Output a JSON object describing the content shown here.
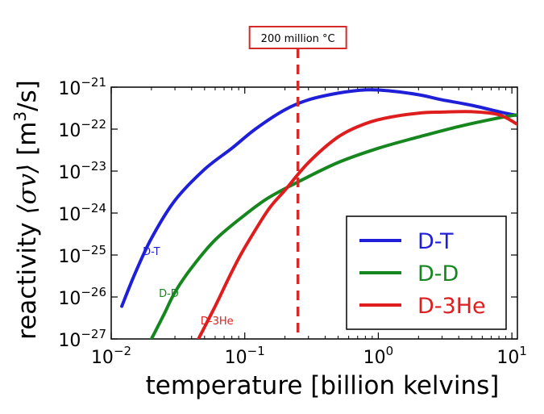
{
  "chart_data": {
    "type": "line",
    "xscale": "log",
    "yscale": "log",
    "xlim": [
      0.01,
      11
    ],
    "ylim": [
      1e-27,
      1e-21
    ],
    "xlabel": "temperature  [billion kelvins]",
    "ylabel": "reactivity",
    "ylabel_math": "⟨σv⟩",
    "ylabel_unit_pre": "[m",
    "ylabel_unit_sup": "3",
    "ylabel_unit_post": "/s]",
    "x_ticks": [
      {
        "value": 0.01,
        "base": "10",
        "exp": "−2"
      },
      {
        "value": 0.1,
        "base": "10",
        "exp": "−1"
      },
      {
        "value": 1,
        "base": "10",
        "exp": "0"
      },
      {
        "value": 10,
        "base": "10",
        "exp": "1"
      }
    ],
    "y_ticks": [
      {
        "value": 1e-21,
        "base": "10",
        "exp": "−21"
      },
      {
        "value": 1e-22,
        "base": "10",
        "exp": "−22"
      },
      {
        "value": 1e-23,
        "base": "10",
        "exp": "−23"
      },
      {
        "value": 1e-24,
        "base": "10",
        "exp": "−24"
      },
      {
        "value": 1e-25,
        "base": "10",
        "exp": "−25"
      },
      {
        "value": 1e-26,
        "base": "10",
        "exp": "−26"
      },
      {
        "value": 1e-27,
        "base": "10",
        "exp": "−27"
      }
    ],
    "annotation": {
      "text": "200 million °C",
      "x": 0.25,
      "color": "#d42a2a"
    },
    "legend": {
      "placement": "lower-right"
    },
    "series": [
      {
        "name": "D-T",
        "inline_label": "D-T",
        "label_pos": {
          "x": 0.02,
          "y": 1e-25
        },
        "color": "#1f1fd8",
        "x": [
          0.012,
          0.015,
          0.02,
          0.03,
          0.05,
          0.08,
          0.12,
          0.2,
          0.3,
          0.5,
          0.8,
          1.2,
          2,
          3,
          5,
          8,
          11
        ],
        "y": [
          6e-27,
          3.5e-26,
          2.5e-25,
          2e-24,
          1.1e-23,
          3.5e-23,
          1e-22,
          2.9e-22,
          5e-22,
          7.2e-22,
          8.6e-22,
          8.2e-22,
          6.6e-22,
          5e-22,
          3.7e-22,
          2.6e-22,
          2.1e-22
        ]
      },
      {
        "name": "D-D",
        "inline_label": "D-D",
        "label_pos": {
          "x": 0.027,
          "y": 1e-26
        },
        "color": "#16861e",
        "x": [
          0.02,
          0.025,
          0.03,
          0.04,
          0.06,
          0.1,
          0.15,
          0.25,
          0.5,
          1,
          2,
          4,
          8,
          11
        ],
        "y": [
          1e-27,
          4e-27,
          1.3e-26,
          5e-26,
          2.3e-25,
          9e-25,
          2.3e-24,
          5.5e-24,
          1.6e-23,
          3.5e-23,
          6.5e-23,
          1.15e-22,
          1.85e-22,
          2.2e-22
        ]
      },
      {
        "name": "D-3He",
        "inline_label": "D-3He",
        "label_pos": {
          "x": 0.062,
          "y": 2.2e-27
        },
        "color": "#de1e1e",
        "x": [
          0.045,
          0.06,
          0.08,
          0.1,
          0.15,
          0.2,
          0.3,
          0.5,
          0.8,
          1.2,
          2,
          3,
          5,
          8,
          11
        ],
        "y": [
          1e-27,
          6e-27,
          4e-26,
          1.5e-25,
          1.2e-24,
          3.5e-24,
          1.6e-23,
          6.5e-23,
          1.35e-22,
          1.9e-22,
          2.4e-22,
          2.55e-22,
          2.6e-22,
          2.2e-22,
          1.3e-22
        ]
      }
    ]
  }
}
